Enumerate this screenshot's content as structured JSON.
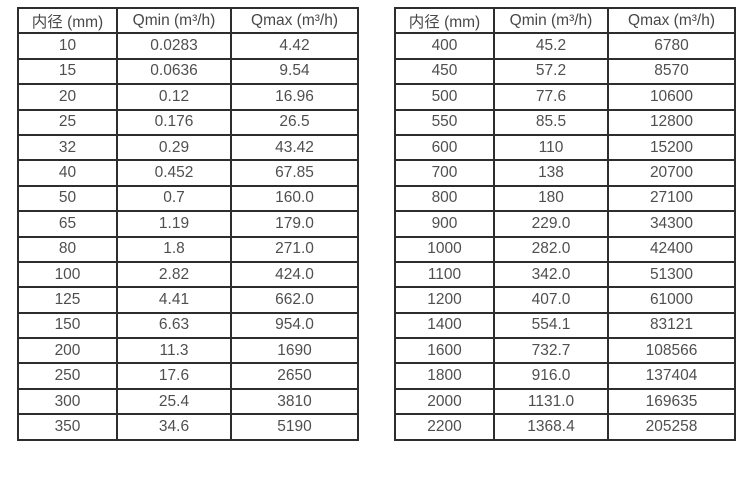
{
  "colors": {
    "border": "#2d2d2d",
    "text": "#4f4f4f",
    "background": "#ffffff"
  },
  "header": {
    "diameter": "内径 (mm)",
    "qmin": "Qmin (m³/h)",
    "qmax": "Qmax (m³/h)"
  },
  "tables": [
    {
      "rows": [
        [
          "10",
          "0.0283",
          "4.42"
        ],
        [
          "15",
          "0.0636",
          "9.54"
        ],
        [
          "20",
          "0.12",
          "16.96"
        ],
        [
          "25",
          "0.176",
          "26.5"
        ],
        [
          "32",
          "0.29",
          "43.42"
        ],
        [
          "40",
          "0.452",
          "67.85"
        ],
        [
          "50",
          "0.7",
          "160.0"
        ],
        [
          "65",
          "1.19",
          "179.0"
        ],
        [
          "80",
          "1.8",
          "271.0"
        ],
        [
          "100",
          "2.82",
          "424.0"
        ],
        [
          "125",
          "4.41",
          "662.0"
        ],
        [
          "150",
          "6.63",
          "954.0"
        ],
        [
          "200",
          "11.3",
          "1690"
        ],
        [
          "250",
          "17.6",
          "2650"
        ],
        [
          "300",
          "25.4",
          "3810"
        ],
        [
          "350",
          "34.6",
          "5190"
        ]
      ]
    },
    {
      "rows": [
        [
          "400",
          "45.2",
          "6780"
        ],
        [
          "450",
          "57.2",
          "8570"
        ],
        [
          "500",
          "77.6",
          "10600"
        ],
        [
          "550",
          "85.5",
          "12800"
        ],
        [
          "600",
          "110",
          "15200"
        ],
        [
          "700",
          "138",
          "20700"
        ],
        [
          "800",
          "180",
          "27100"
        ],
        [
          "900",
          "229.0",
          "34300"
        ],
        [
          "1000",
          "282.0",
          "42400"
        ],
        [
          "1100",
          "342.0",
          "51300"
        ],
        [
          "1200",
          "407.0",
          "61000"
        ],
        [
          "1400",
          "554.1",
          "83121"
        ],
        [
          "1600",
          "732.7",
          "108566"
        ],
        [
          "1800",
          "916.0",
          "137404"
        ],
        [
          "2000",
          "1131.0",
          "169635"
        ],
        [
          "2200",
          "1368.4",
          "205258"
        ]
      ]
    }
  ]
}
